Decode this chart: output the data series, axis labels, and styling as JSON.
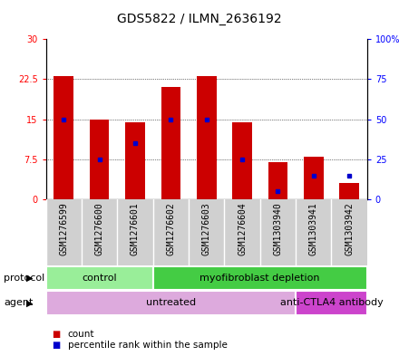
{
  "title": "GDS5822 / ILMN_2636192",
  "samples": [
    "GSM1276599",
    "GSM1276600",
    "GSM1276601",
    "GSM1276602",
    "GSM1276603",
    "GSM1276604",
    "GSM1303940",
    "GSM1303941",
    "GSM1303942"
  ],
  "counts": [
    23.0,
    15.0,
    14.5,
    21.0,
    23.0,
    14.5,
    7.0,
    8.0,
    3.0
  ],
  "percentiles": [
    50,
    25,
    35,
    50,
    50,
    25,
    5,
    15,
    15
  ],
  "left_ylim": [
    0,
    30
  ],
  "right_ylim": [
    0,
    100
  ],
  "left_yticks": [
    0,
    7.5,
    15,
    22.5,
    30
  ],
  "right_yticks": [
    0,
    25,
    50,
    75,
    100
  ],
  "right_yticklabels": [
    "0",
    "25",
    "50",
    "75",
    "100%"
  ],
  "bar_color": "#cc0000",
  "marker_color": "#0000cc",
  "protocol_groups": [
    {
      "label": "control",
      "start": 0,
      "end": 3,
      "color": "#99ee99"
    },
    {
      "label": "myofibroblast depletion",
      "start": 3,
      "end": 9,
      "color": "#44cc44"
    }
  ],
  "agent_groups": [
    {
      "label": "untreated",
      "start": 0,
      "end": 7,
      "color": "#ddaadd"
    },
    {
      "label": "anti-CTLA4 antibody",
      "start": 7,
      "end": 9,
      "color": "#cc44cc"
    }
  ],
  "protocol_label": "protocol",
  "agent_label": "agent",
  "legend_count_label": "count",
  "legend_pct_label": "percentile rank within the sample",
  "grid_color": "black",
  "plot_bg_color": "#ffffff",
  "bar_width": 0.55,
  "title_fontsize": 10,
  "tick_fontsize": 7,
  "label_fontsize": 8,
  "row_label_fontsize": 8,
  "xtick_fontsize": 7,
  "legend_fontsize": 7.5
}
